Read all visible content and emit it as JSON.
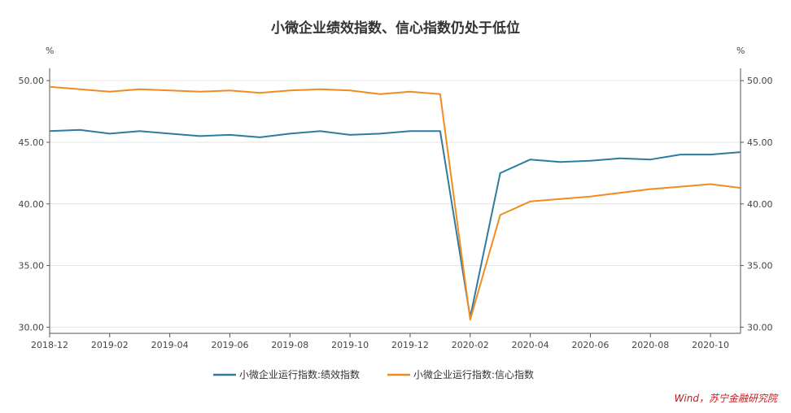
{
  "chart_data": {
    "type": "line",
    "title": "小微企业绩效指数、信心指数仍处于低位",
    "y_unit_left": "%",
    "y_unit_right": "%",
    "ylim": [
      29.5,
      51.0
    ],
    "y_ticks": [
      30,
      35,
      40,
      45,
      50
    ],
    "y_tick_labels": [
      "30.00",
      "35.00",
      "40.00",
      "45.00",
      "50.00"
    ],
    "x_tick_labels": [
      "2018-12",
      "2019-02",
      "2019-04",
      "2019-06",
      "2019-08",
      "2019-10",
      "2019-12",
      "2020-02",
      "2020-04",
      "2020-06",
      "2020-08",
      "2020-10"
    ],
    "x": [
      "2018-12",
      "2019-01",
      "2019-02",
      "2019-03",
      "2019-04",
      "2019-05",
      "2019-06",
      "2019-07",
      "2019-08",
      "2019-09",
      "2019-10",
      "2019-11",
      "2019-12",
      "2020-01",
      "2020-02",
      "2020-03",
      "2020-04",
      "2020-05",
      "2020-06",
      "2020-07",
      "2020-08",
      "2020-09",
      "2020-10",
      "2020-11"
    ],
    "series": [
      {
        "name": "小微企业运行指数:绩效指数",
        "color": "#2e7aa1",
        "values": [
          45.9,
          46.0,
          45.7,
          45.9,
          45.7,
          45.5,
          45.6,
          45.4,
          45.7,
          45.9,
          45.6,
          45.7,
          45.9,
          45.9,
          30.8,
          42.5,
          43.6,
          43.4,
          43.5,
          43.7,
          43.6,
          44.0,
          44.0,
          44.2
        ]
      },
      {
        "name": "小微企业运行指数:信心指数",
        "color": "#f08c1e",
        "values": [
          49.5,
          49.3,
          49.1,
          49.3,
          49.2,
          49.1,
          49.2,
          49.0,
          49.2,
          49.3,
          49.2,
          48.9,
          49.1,
          48.9,
          30.6,
          39.1,
          40.2,
          40.4,
          40.6,
          40.9,
          41.2,
          41.4,
          41.6,
          41.3
        ]
      }
    ],
    "grid": true,
    "legend_position": "bottom"
  },
  "source": "Wind，苏宁金融研究院"
}
